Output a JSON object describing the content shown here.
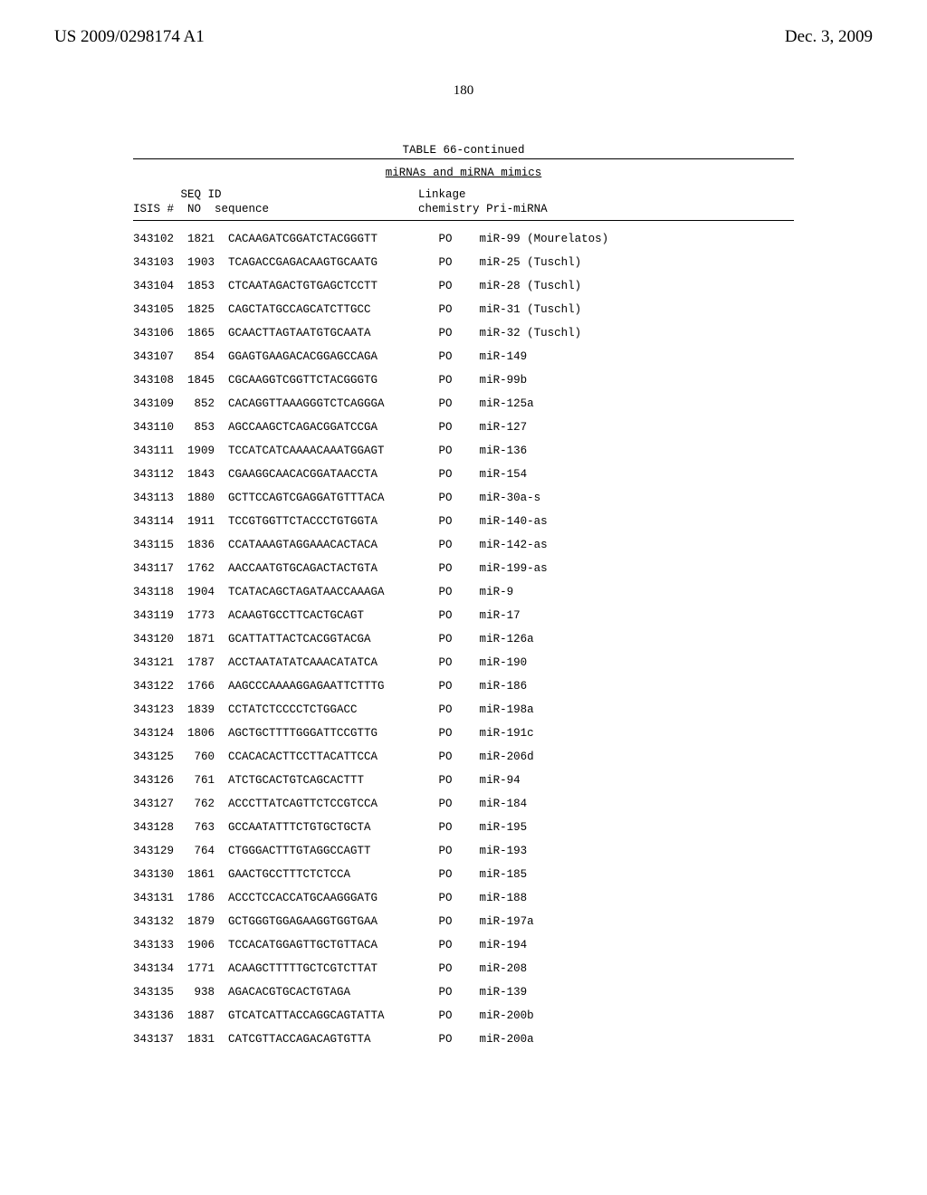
{
  "header": {
    "publication_number": "US 2009/0298174 A1",
    "publication_date": "Dec. 3, 2009",
    "page_number": "180"
  },
  "table": {
    "title": "TABLE 66-continued",
    "subtitle": "miRNAs and miRNA mimics",
    "col_headers_line1": "       SEQ ID                             Linkage",
    "col_headers_line2": "ISIS #  NO  sequence                      chemistry Pri-miRNA",
    "rows": [
      "343102  1821  CACAAGATCGGATCTACGGGTT         PO    miR-99 (Mourelatos)",
      "343103  1903  TCAGACCGAGACAAGTGCAATG         PO    miR-25 (Tuschl)",
      "343104  1853  CTCAATAGACTGTGAGCTCCTT         PO    miR-28 (Tuschl)",
      "343105  1825  CAGCTATGCCAGCATCTTGCC          PO    miR-31 (Tuschl)",
      "343106  1865  GCAACTTAGTAATGTGCAATA          PO    miR-32 (Tuschl)",
      "343107   854  GGAGTGAAGACACGGAGCCAGA         PO    miR-149",
      "343108  1845  CGCAAGGTCGGTTCTACGGGTG         PO    miR-99b",
      "343109   852  CACAGGTTAAAGGGTCTCAGGGA        PO    miR-125a",
      "343110   853  AGCCAAGCTCAGACGGATCCGA         PO    miR-127",
      "343111  1909  TCCATCATCAAAACAAATGGAGT        PO    miR-136",
      "343112  1843  CGAAGGCAACACGGATAACCTA         PO    miR-154",
      "343113  1880  GCTTCCAGTCGAGGATGTTTACA        PO    miR-30a-s",
      "343114  1911  TCCGTGGTTCTACCCTGTGGTA         PO    miR-140-as",
      "343115  1836  CCATAAAGTAGGAAACACTACA         PO    miR-142-as",
      "343117  1762  AACCAATGTGCAGACTACTGTA         PO    miR-199-as",
      "343118  1904  TCATACAGCTAGATAACCAAAGA        PO    miR-9",
      "343119  1773  ACAAGTGCCTTCACTGCAGT           PO    miR-17",
      "343120  1871  GCATTATTACTCACGGTACGA          PO    miR-126a",
      "343121  1787  ACCTAATATATCAAACATATCA         PO    miR-190",
      "343122  1766  AAGCCCAAAAGGAGAATTCTTTG        PO    miR-186",
      "343123  1839  CCTATCTCCCCTCTGGACC            PO    miR-198a",
      "343124  1806  AGCTGCTTTTGGGATTCCGTTG         PO    miR-191c",
      "343125   760  CCACACACTTCCTTACATTCCA         PO    miR-206d",
      "343126   761  ATCTGCACTGTCAGCACTTT           PO    miR-94",
      "343127   762  ACCCTTATCAGTTCTCCGTCCA         PO    miR-184",
      "343128   763  GCCAATATTTCTGTGCTGCTA          PO    miR-195",
      "343129   764  CTGGGACTTTGTAGGCCAGTT          PO    miR-193",
      "343130  1861  GAACTGCCTTTCTCTCCA             PO    miR-185",
      "343131  1786  ACCCTCCACCATGCAAGGGATG         PO    miR-188",
      "343132  1879  GCTGGGTGGAGAAGGTGGTGAA         PO    miR-197a",
      "343133  1906  TCCACATGGAGTTGCTGTTACA         PO    miR-194",
      "343134  1771  ACAAGCTTTTTGCTCGTCTTAT         PO    miR-208",
      "343135   938  AGACACGTGCACTGTAGA             PO    miR-139",
      "343136  1887  GTCATCATTACCAGGCAGTATTA        PO    miR-200b",
      "343137  1831  CATCGTTACCAGACAGTGTTA          PO    miR-200a"
    ]
  }
}
